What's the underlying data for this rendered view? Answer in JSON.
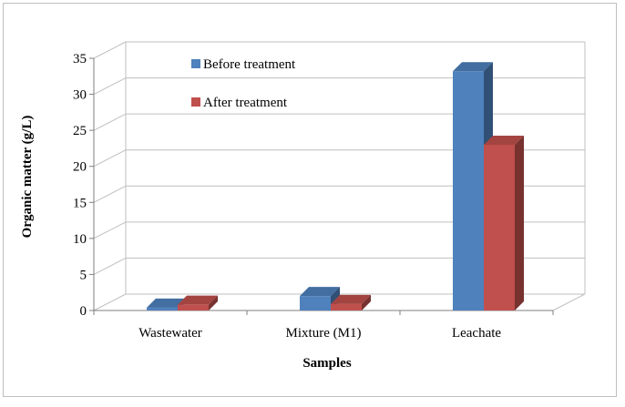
{
  "chart_data": {
    "type": "bar",
    "title": "",
    "xlabel": "Samples",
    "ylabel": "Organic matter  (g/L)",
    "ylim": [
      0,
      35
    ],
    "yticks": [
      0,
      5,
      10,
      15,
      20,
      25,
      30,
      35
    ],
    "categories": [
      "Wastewater",
      "Mixture (M1)",
      "Leachate"
    ],
    "series": [
      {
        "name": "Before treatment",
        "values": [
          0.4,
          2.0,
          33.2
        ],
        "color": "#4f81bd"
      },
      {
        "name": "After treatment",
        "values": [
          0.8,
          0.9,
          23.0
        ],
        "color": "#c0504d"
      }
    ],
    "grid": true,
    "legend_position": "top-left",
    "style": "3d-column"
  }
}
